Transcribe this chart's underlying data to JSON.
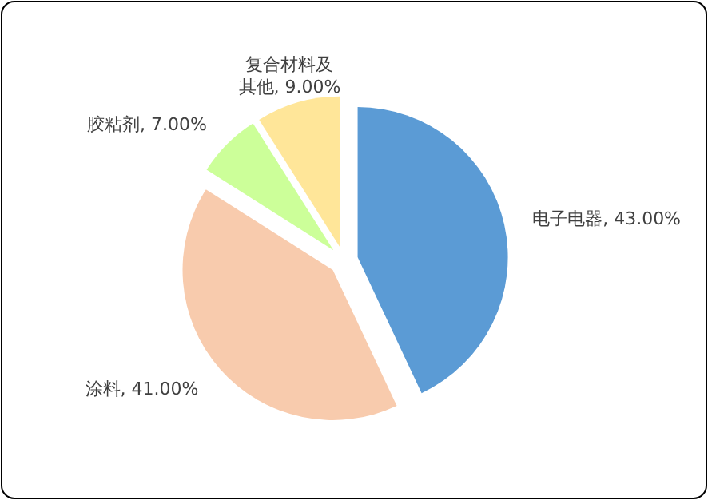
{
  "chart_data": {
    "type": "pie",
    "categories": [
      "电子电器",
      "涂料",
      "胶粘剂",
      "复合材料及其他"
    ],
    "values": [
      43,
      41,
      7,
      9
    ],
    "colors": [
      "#5b9bd5",
      "#f8cbad",
      "#ccff99",
      "#ffe699"
    ],
    "value_labels": [
      "43.00%",
      "41.00%",
      "7.00%",
      "9.00%"
    ]
  }
}
